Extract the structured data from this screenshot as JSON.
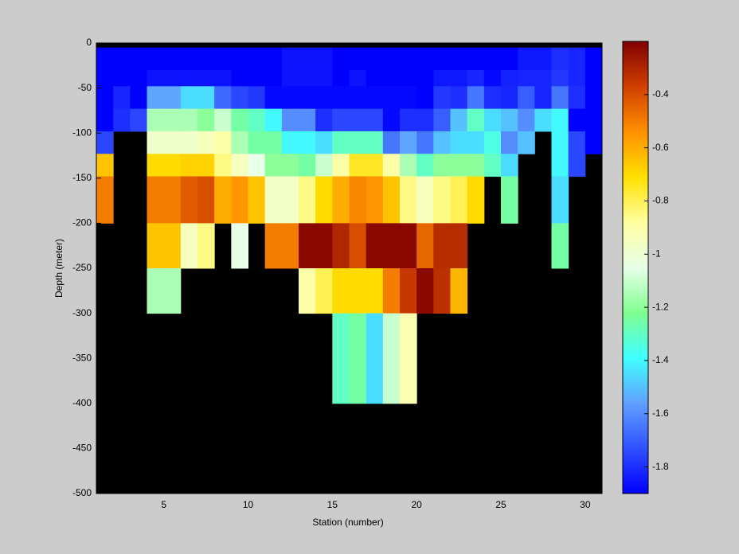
{
  "chart_data": {
    "type": "heatmap",
    "x_label": "Station (number)",
    "y_label": "Depth (meter)",
    "xlim": [
      1,
      31
    ],
    "ylim": [
      -500,
      0
    ],
    "xticks": [
      5,
      10,
      15,
      20,
      25,
      30
    ],
    "yticks": [
      0,
      -50,
      -100,
      -150,
      -200,
      -250,
      -300,
      -350,
      -400,
      -450,
      -500
    ],
    "x_edges": [
      1,
      2,
      3,
      4,
      5,
      6,
      7,
      8,
      9,
      10,
      11,
      12,
      13,
      14,
      15,
      16,
      17,
      18,
      19,
      20,
      21,
      22,
      23,
      24,
      25,
      26,
      27,
      28,
      29,
      30,
      31
    ],
    "y_edges": [
      -5,
      -30,
      -48,
      -73,
      -98,
      -123,
      -148,
      -200,
      -250,
      -300,
      -400
    ],
    "background": "#000000",
    "clim": [
      -1.9,
      -0.2
    ],
    "cticks": [
      -0.4,
      -0.6,
      -0.8,
      -1,
      -1.2,
      -1.4,
      -1.6,
      -1.8
    ],
    "colormap": [
      "#0000ff",
      "#3050ff",
      "#60a0ff",
      "#40ffff",
      "#80ff90",
      "#e8ffe8",
      "#ffffa0",
      "#ffe000",
      "#ff9000",
      "#d04000",
      "#800000"
    ],
    "z": [
      [
        -1.9,
        -1.9,
        -1.9,
        -1.9,
        -1.9,
        -1.9,
        -1.9,
        -1.9,
        -1.9,
        -1.9,
        -1.9,
        -1.86,
        -1.86,
        -1.86,
        -1.9,
        -1.9,
        -1.9,
        -1.9,
        -1.9,
        -1.9,
        -1.9,
        -1.9,
        -1.9,
        -1.9,
        -1.9,
        -1.85,
        -1.85,
        -1.8,
        -1.82,
        -1.9
      ],
      [
        -1.9,
        -1.9,
        -1.9,
        -1.86,
        -1.86,
        -1.86,
        -1.86,
        -1.86,
        -1.9,
        -1.9,
        -1.9,
        -1.86,
        -1.86,
        -1.86,
        -1.9,
        -1.86,
        -1.9,
        -1.9,
        -1.9,
        -1.9,
        -1.85,
        -1.85,
        -1.82,
        -1.88,
        -1.83,
        -1.82,
        -1.82,
        -1.78,
        -1.82,
        -1.9
      ],
      [
        -1.9,
        -1.82,
        -1.9,
        -1.55,
        -1.55,
        -1.45,
        -1.45,
        -1.68,
        -1.75,
        -1.78,
        -1.88,
        -1.88,
        -1.88,
        -1.88,
        -1.88,
        -1.88,
        -1.88,
        -1.88,
        -1.88,
        -1.9,
        -1.78,
        -1.8,
        -1.65,
        -1.8,
        -1.82,
        -1.7,
        -1.82,
        -1.65,
        -1.8,
        -1.9
      ],
      [
        -1.9,
        -1.8,
        -1.75,
        -1.15,
        -1.15,
        -1.15,
        -1.2,
        -1.1,
        -1.25,
        -1.3,
        -1.4,
        -1.6,
        -1.6,
        -1.8,
        -1.75,
        -1.75,
        -1.75,
        -1.88,
        -1.8,
        -1.8,
        -1.7,
        -1.5,
        -1.3,
        -1.45,
        -1.5,
        -1.6,
        -1.45,
        -1.4,
        -1.9,
        -1.9
      ],
      [
        -1.75,
        null,
        null,
        -0.98,
        -0.98,
        -0.98,
        -0.95,
        -0.9,
        -1.15,
        -1.25,
        -1.25,
        -1.4,
        -1.4,
        -1.45,
        -1.3,
        -1.3,
        -1.3,
        -1.65,
        -1.55,
        -1.65,
        -1.5,
        -1.45,
        -1.45,
        -1.35,
        -1.6,
        -1.5,
        null,
        -1.4,
        -1.75,
        -1.9
      ],
      [
        -0.65,
        null,
        null,
        -0.7,
        -0.7,
        -0.68,
        -0.68,
        -0.85,
        -0.95,
        -1.05,
        -1.2,
        -1.2,
        -1.25,
        -1.1,
        -0.9,
        -0.75,
        -0.75,
        -0.9,
        -1.15,
        -1.3,
        -1.2,
        -1.2,
        -1.2,
        -1.3,
        -1.45,
        null,
        null,
        -1.4,
        -1.75,
        null
      ],
      [
        -0.5,
        null,
        null,
        -0.5,
        -0.5,
        -0.43,
        -0.4,
        -0.6,
        -0.55,
        -0.65,
        -0.97,
        -0.97,
        -0.85,
        -0.7,
        -0.6,
        -0.52,
        -0.55,
        -0.65,
        -0.85,
        -0.95,
        -0.85,
        -0.8,
        -0.7,
        null,
        -1.25,
        null,
        null,
        -1.45,
        null,
        null
      ],
      [
        null,
        null,
        null,
        -0.65,
        -0.65,
        -0.95,
        -0.85,
        null,
        -1.05,
        null,
        -0.5,
        -0.5,
        -0.22,
        -0.22,
        -0.3,
        -0.4,
        -0.22,
        -0.22,
        -0.22,
        -0.45,
        -0.32,
        -0.32,
        null,
        null,
        null,
        null,
        null,
        -1.25,
        null,
        null
      ],
      [
        null,
        null,
        null,
        -1.15,
        -1.15,
        null,
        null,
        null,
        null,
        null,
        null,
        null,
        -0.9,
        -0.8,
        -0.7,
        -0.7,
        -0.7,
        -0.5,
        -0.35,
        -0.22,
        -0.33,
        -0.62,
        null,
        null,
        null,
        null,
        null,
        null,
        null,
        null
      ],
      [
        null,
        null,
        null,
        null,
        null,
        null,
        null,
        null,
        null,
        null,
        null,
        null,
        null,
        null,
        -1.3,
        -1.25,
        -1.45,
        -1.1,
        -0.92,
        null,
        null,
        null,
        null,
        null,
        null,
        null,
        null,
        null,
        null,
        null
      ]
    ]
  }
}
